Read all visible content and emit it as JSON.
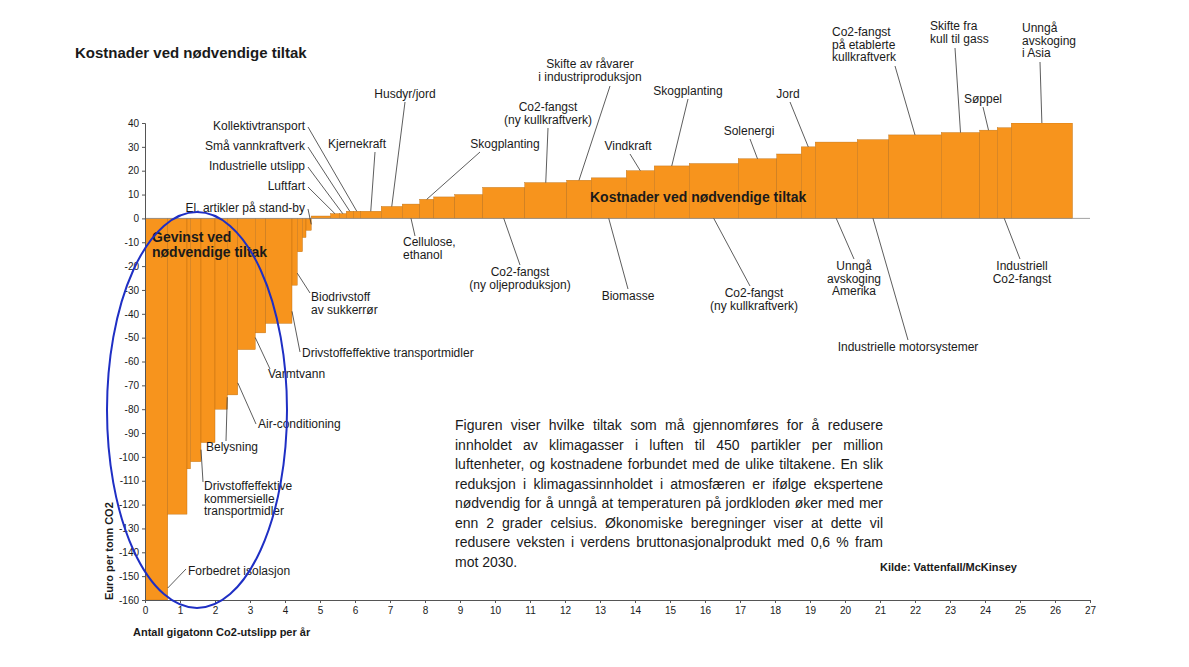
{
  "chart_data": {
    "type": "bar",
    "title": "Kostnader ved nødvendige tiltak",
    "x_label": "Antall gigatonn Co2-utslipp per år",
    "y_label": "Euro per tonn CO2",
    "categories": [
      "Forbedret isolasjon",
      null,
      null,
      "Drivstoffeffektive\nkommersielle\ntransportmidler",
      null,
      "Belysning",
      "Air-conditioning",
      "Varmtvann",
      null,
      "Drivstoffeffektive transportmidler",
      "Biodrivstoff\nav sukkerrør",
      null,
      null,
      "El. artikler på stand-by",
      null,
      "Luftfart",
      "Industrielle utslipp",
      "Små vannkraftverk",
      "Kollektivtransport",
      "Kjernekraft",
      "Husdyr/jord",
      "Cellulose,\nethanol",
      "Skogplanting",
      null,
      null,
      "Co2-fangst\n(ny oljeproduksjon)",
      "Co2-fangst\n(ny kullkraftverk)",
      "Skifte av råvarer\ni industriproduksjon",
      "Biomasse",
      "Vindkraft",
      "Skogplanting",
      "Co2-fangst\n(ny kullkraftverk)",
      "Solenergi",
      null,
      "Jord",
      "Unngå\navskoging\nAmerika",
      "Industrielle motorsystemer",
      "Co2-fangst\npå etablerte\nkullkraftverk",
      "Skifte fra\nkull til gass",
      "Søppel",
      "Industriell\nCo2-fangst",
      "Unngå\navskoging\ni Asia"
    ],
    "widths": [
      0.65,
      0.55,
      0.1,
      0.3,
      0.4,
      0.35,
      0.3,
      0.5,
      0.3,
      0.75,
      0.15,
      0.15,
      0.1,
      0.15,
      0.55,
      0.25,
      0.2,
      0.2,
      0.2,
      0.6,
      0.6,
      0.5,
      0.4,
      0.6,
      0.8,
      1.2,
      1.2,
      0.7,
      1.0,
      0.8,
      1.0,
      1.4,
      1.1,
      0.7,
      0.4,
      1.2,
      0.9,
      1.5,
      1.1,
      0.5,
      0.4,
      1.75
    ],
    "values": [
      -160,
      -124,
      -105,
      -102,
      -94,
      -80,
      -74,
      -55,
      -48,
      -44,
      -28,
      -14,
      -8,
      -5,
      1,
      2,
      2,
      3,
      3,
      3,
      5,
      6,
      8,
      9,
      10,
      13,
      15,
      16,
      17,
      20,
      22,
      23,
      25,
      27,
      30,
      32,
      33,
      35,
      36,
      37,
      38,
      40
    ],
    "color": "#f7941d",
    "xlim": [
      0,
      27
    ],
    "xticks": [
      0,
      1,
      2,
      3,
      4,
      5,
      6,
      7,
      8,
      9,
      10,
      11,
      12,
      13,
      14,
      15,
      16,
      17,
      18,
      19,
      20,
      21,
      22,
      23,
      24,
      25,
      26,
      27
    ],
    "ylim": [
      -160,
      40
    ],
    "yticks": [
      -160,
      -150,
      -140,
      -130,
      -120,
      -110,
      -100,
      -90,
      -80,
      -70,
      -60,
      -50,
      -40,
      -30,
      -20,
      -10,
      0,
      10,
      20,
      30,
      40
    ],
    "annotations": [
      "Gevinst ved\nnødvendige tiltak",
      "Kostnader ved nødvendige tiltak"
    ],
    "caption": "Figuren viser hvilke tiltak som må gjennomføres for å redusere innholdet av klimagasser i luften til 450 partikler per million luftenheter, og kostnadene forbundet med de ulike tiltakene. En slik reduksjon i klimagassinnholdet i atmosfæren er ifølge ekspertene nødvendig for å unngå at temperaturen på jordkloden øker med mer enn 2 grader celsius. Økonomiske beregninger viser at dette vil redusere veksten i verdens bruttonasjonalprodukt med 0,6 % fram mot 2030.",
    "source": "Kilde: Vattenfall/McKinsey"
  }
}
